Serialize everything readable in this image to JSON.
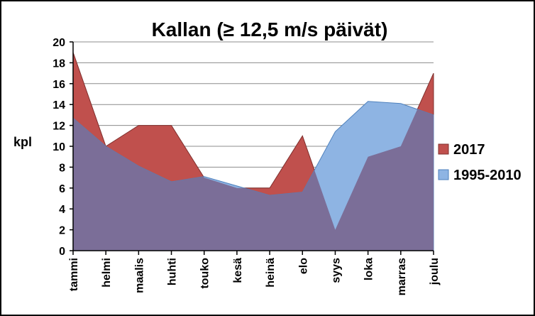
{
  "chart_data": {
    "type": "area",
    "title": "Kallan (≥ 12,5 m/s päivät)",
    "ylabel": "kpl",
    "xlabel": "",
    "categories": [
      "tammi",
      "helmi",
      "maalis",
      "huhti",
      "touko",
      "kesä",
      "heinä",
      "elo",
      "syys",
      "loka",
      "marras",
      "joulu"
    ],
    "ylim": [
      0,
      20
    ],
    "yticks": [
      "0",
      "2",
      "4",
      "6",
      "8",
      "10",
      "12",
      "14",
      "16",
      "18",
      "20"
    ],
    "grid": true,
    "legend_position": "right",
    "series": [
      {
        "name": "2017",
        "color": "#c0504d",
        "values": [
          19,
          10,
          12,
          12,
          7,
          6,
          6,
          11,
          2,
          9,
          10,
          17
        ]
      },
      {
        "name": "1995-2010",
        "color": "#8eb4e3",
        "values": [
          12.7,
          10,
          8.1,
          6.6,
          7.1,
          6.2,
          5.3,
          5.6,
          11.4,
          14.3,
          14.1,
          13
        ]
      }
    ],
    "overlap_color": "#7b6e98"
  }
}
